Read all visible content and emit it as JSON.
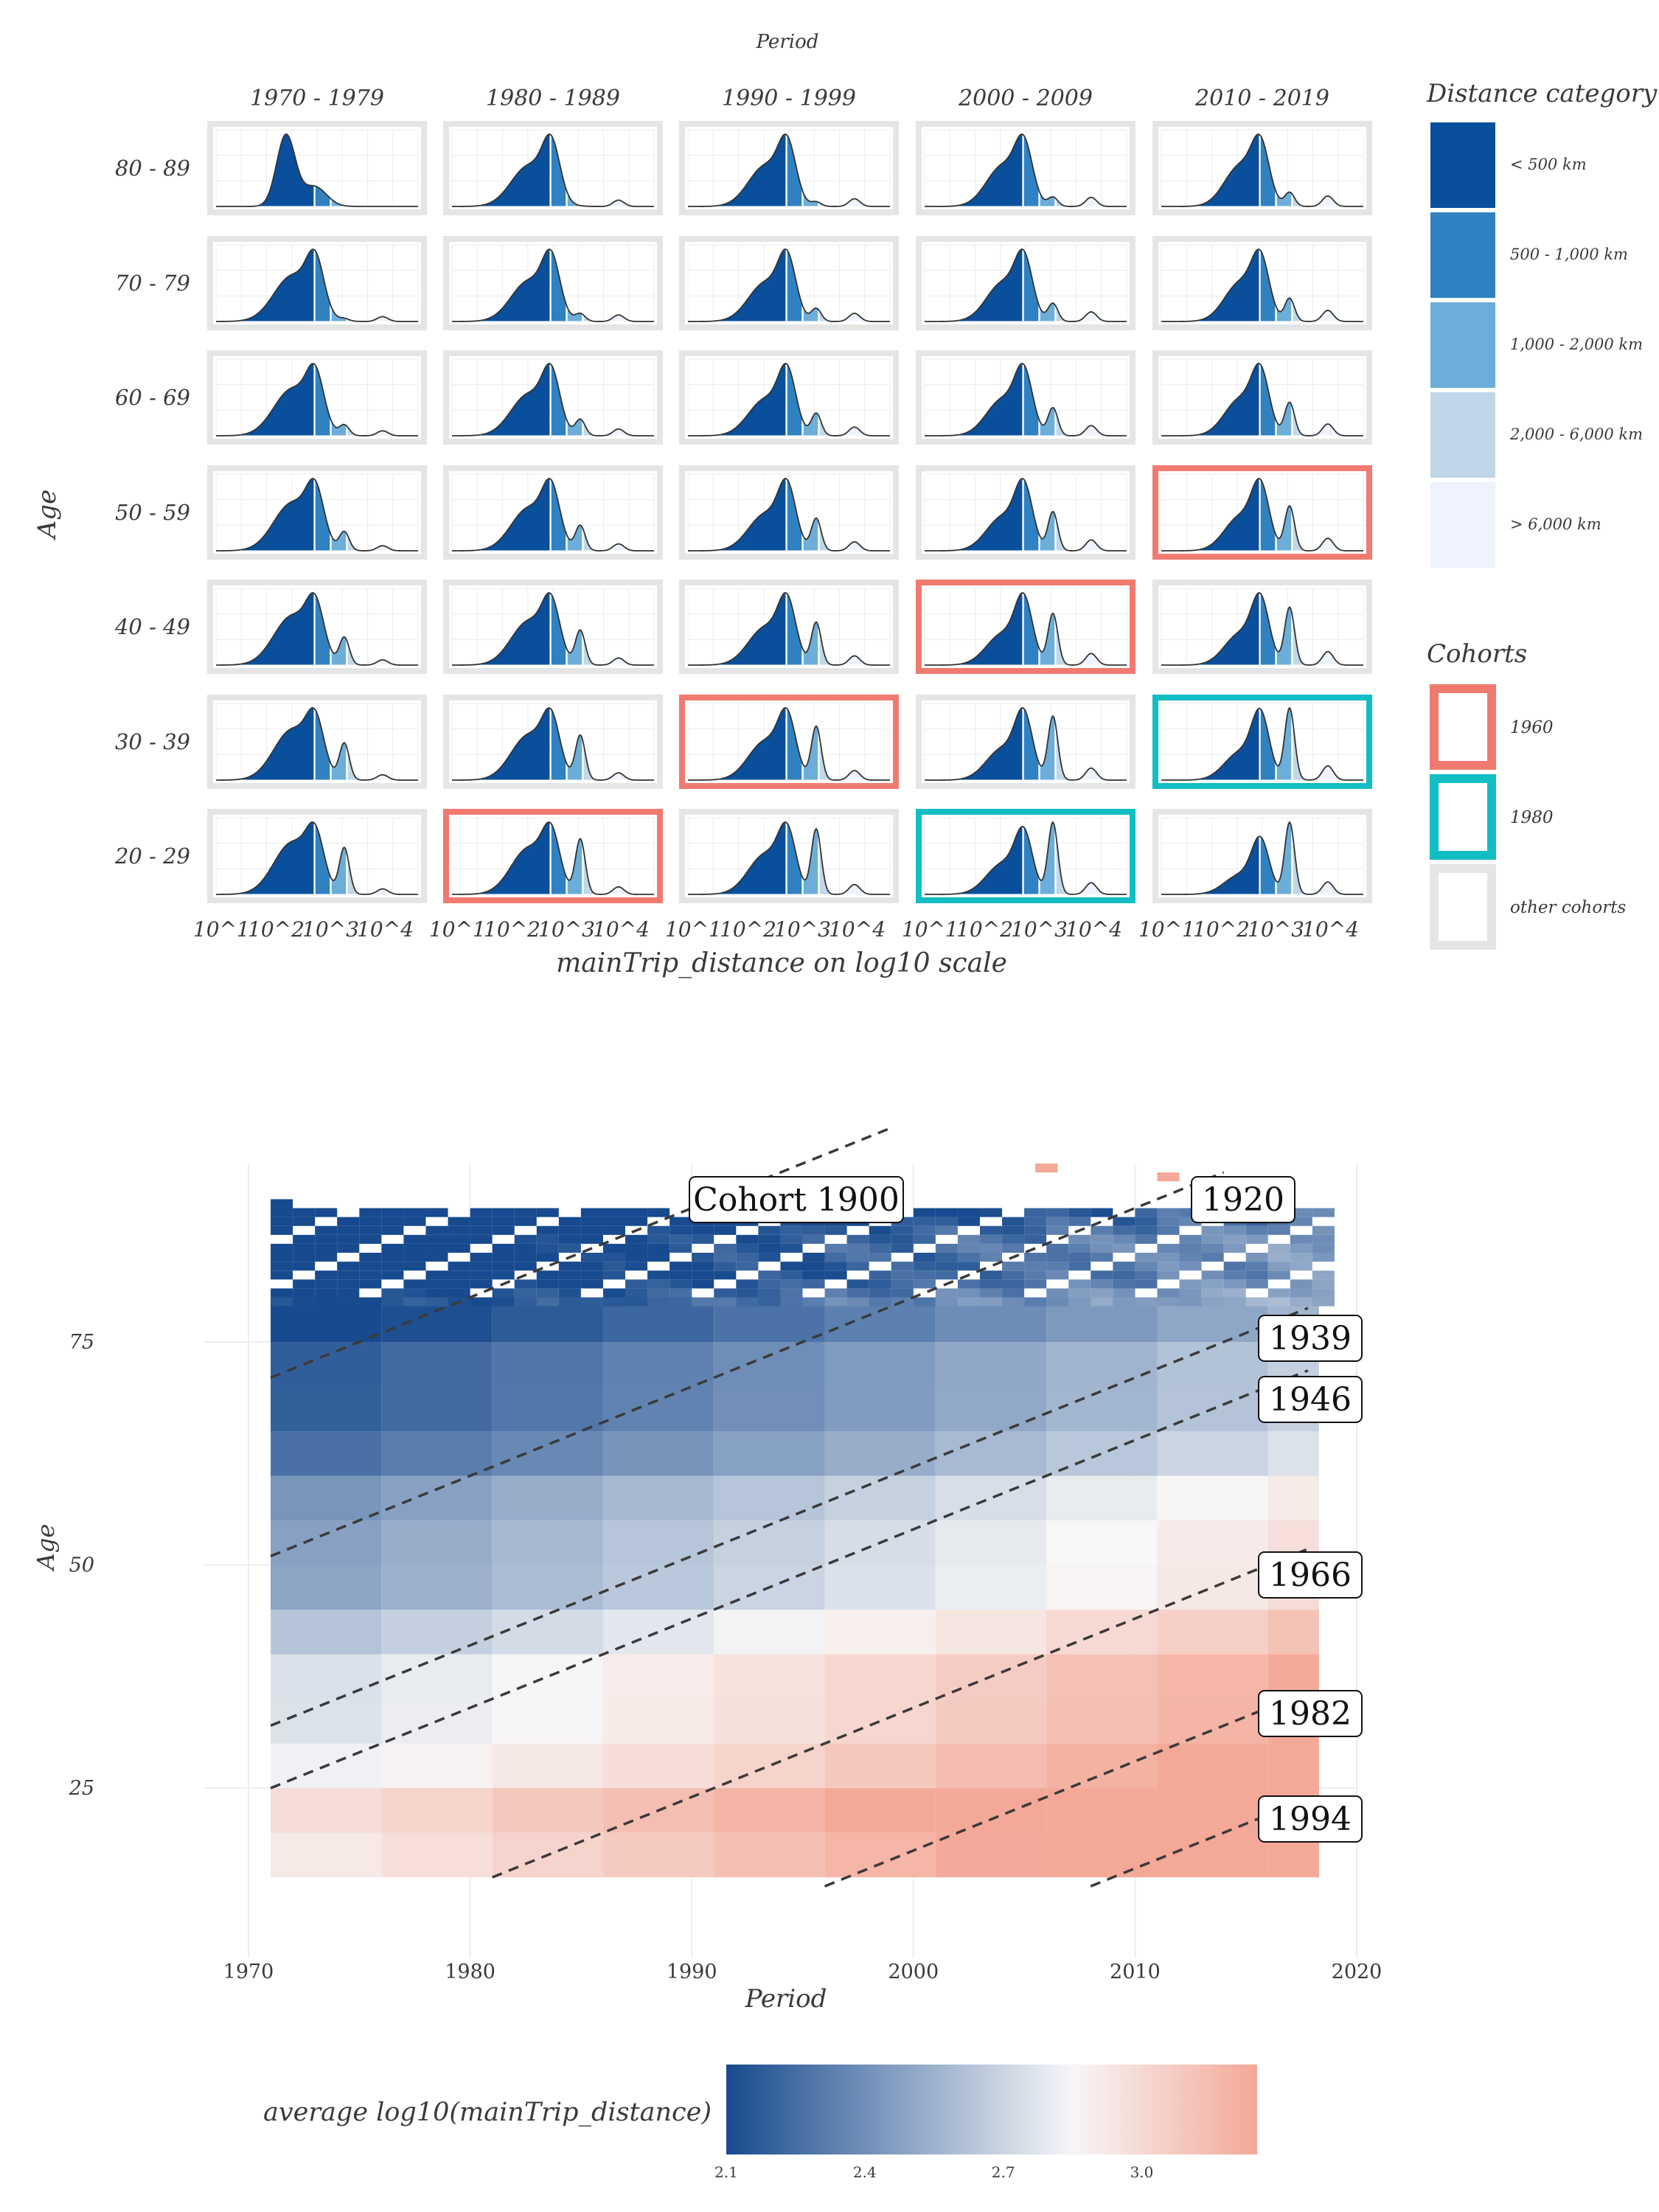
{
  "chart_data": [
    {
      "type": "area",
      "title": "Period",
      "xlabel": "mainTrip_distance on log10 scale",
      "ylabel": "Age",
      "periods": [
        "1970 - 1979",
        "1980 - 1989",
        "1990 - 1999",
        "2000 - 2009",
        "2010 - 2019"
      ],
      "ages": [
        "80 - 89",
        "70 - 79",
        "60 - 69",
        "50 - 59",
        "40 - 49",
        "30 - 39",
        "20 - 29"
      ],
      "x_ticks": [
        "10^1",
        "10^2",
        "10^3",
        "10^4"
      ],
      "xlim": [
        0.9,
        4.6
      ],
      "legend_distance": {
        "title": "Distance category",
        "items": [
          {
            "label": "< 500 km",
            "color": "#0a4f9c",
            "upper_log10": 2.699
          },
          {
            "label": "500 - 1,000 km",
            "color": "#3081c2",
            "upper_log10": 3.0
          },
          {
            "label": "1,000 - 2,000 km",
            "color": "#6caed9",
            "upper_log10": 3.301
          },
          {
            "label": "2,000 - 6,000 km",
            "color": "#c0d7e8",
            "upper_log10": 3.778
          },
          {
            "label": "> 6,000 km",
            "color": "#eff3fe",
            "upper_log10": 4.6
          }
        ]
      },
      "legend_cohorts": {
        "title": "Cohorts",
        "items": [
          {
            "label": "1960",
            "color": "#f07a70"
          },
          {
            "label": "1980",
            "color": "#13bdc4"
          },
          {
            "label": "other cohorts",
            "color": "#e5e5e5"
          }
        ]
      },
      "highlights": [
        {
          "age": "50 - 59",
          "period": "2010 - 2019",
          "cohort": "1960"
        },
        {
          "age": "40 - 49",
          "period": "2000 - 2009",
          "cohort": "1960"
        },
        {
          "age": "30 - 39",
          "period": "1990 - 1999",
          "cohort": "1960"
        },
        {
          "age": "20 - 29",
          "period": "1980 - 1989",
          "cohort": "1960"
        },
        {
          "age": "30 - 39",
          "period": "2010 - 2019",
          "cohort": "1980"
        },
        {
          "age": "20 - 29",
          "period": "2000 - 2009",
          "cohort": "1980"
        }
      ]
    },
    {
      "type": "heatmap",
      "xlabel": "Period",
      "ylabel": "Age",
      "xlim": [
        1970,
        2020
      ],
      "ylim": [
        6,
        95
      ],
      "x_ticks": [
        1970,
        1980,
        1990,
        2000,
        2010,
        2020
      ],
      "y_ticks": [
        25,
        50,
        75
      ],
      "colorbar": {
        "title": "average log10(mainTrip_distance)",
        "ticks": [
          2.1,
          2.4,
          2.7,
          3.0
        ],
        "range": [
          2.1,
          3.25
        ],
        "low_color": "#174a8e",
        "mid_color": "#f7f7f7",
        "high_color": "#f4a897"
      },
      "cohort_lines": [
        {
          "cohort": "Cohort 1900",
          "label": "Cohort 1900"
        },
        {
          "cohort": 1920,
          "label": "1920"
        },
        {
          "cohort": 1939,
          "label": "1939"
        },
        {
          "cohort": 1946,
          "label": "1946"
        },
        {
          "cohort": 1966,
          "label": "1966"
        },
        {
          "cohort": 1982,
          "label": "1982"
        },
        {
          "cohort": 1994,
          "label": "1994"
        }
      ]
    }
  ]
}
